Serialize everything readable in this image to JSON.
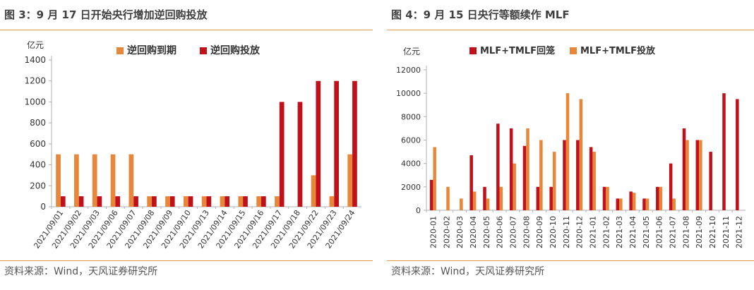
{
  "colors": {
    "dark_red": "#c0111a",
    "orange": "#e8873a",
    "rule": "#e09a47"
  },
  "left": {
    "title": "图 3：9 月 17 日开始央行增加逆回购投放",
    "source": "资料来源：Wind，天风证券研究所",
    "chart_data": {
      "type": "bar",
      "ylabel": "亿元",
      "ylim": [
        0,
        1400
      ],
      "yticks": [
        0,
        200,
        400,
        600,
        800,
        1000,
        1200,
        1400
      ],
      "categories": [
        "2021/09/01",
        "2021/09/02",
        "2021/09/03",
        "2021/09/06",
        "2021/09/07",
        "2021/09/08",
        "2021/09/09",
        "2021/09/10",
        "2021/09/13",
        "2021/09/14",
        "2021/09/15",
        "2021/09/16",
        "2021/09/17",
        "2021/09/18",
        "2021/09/22",
        "2021/09/23",
        "2021/09/24"
      ],
      "series": [
        {
          "name": "逆回购到期",
          "color": "#e8873a",
          "values": [
            500,
            500,
            500,
            500,
            500,
            100,
            100,
            100,
            100,
            100,
            100,
            100,
            100,
            0,
            300,
            100,
            500
          ]
        },
        {
          "name": "逆回购投放",
          "color": "#c0111a",
          "values": [
            100,
            100,
            100,
            100,
            100,
            100,
            100,
            100,
            100,
            100,
            100,
            100,
            1000,
            1000,
            1200,
            1200,
            1200
          ]
        }
      ],
      "legend": "top-center"
    }
  },
  "right": {
    "title": "图 4：9 月 15 日央行等额续作 MLF",
    "source": "资料来源：Wind，天风证券研究所",
    "chart_data": {
      "type": "bar",
      "ylabel": "亿元",
      "ylim": [
        0,
        12000
      ],
      "yticks": [
        0,
        2000,
        4000,
        6000,
        8000,
        10000,
        12000
      ],
      "categories": [
        "2020-01",
        "2020-02",
        "2020-03",
        "2020-04",
        "2020-05",
        "2020-06",
        "2020-07",
        "2020-08",
        "2020-09",
        "2020-10",
        "2020-11",
        "2020-12",
        "2021-01",
        "2021-02",
        "2021-03",
        "2021-04",
        "2021-05",
        "2021-06",
        "2021-07",
        "2021-08",
        "2021-09",
        "2021-10",
        "2021-11",
        "2021-12"
      ],
      "series": [
        {
          "name": "MLF+TMLF回笼",
          "color": "#c0111a",
          "values": [
            2600,
            0,
            0,
            4700,
            2000,
            7400,
            7000,
            5500,
            2000,
            2000,
            6000,
            6000,
            5400,
            2000,
            1000,
            1600,
            1000,
            2000,
            4000,
            7000,
            6000,
            5000,
            10000,
            9500
          ]
        },
        {
          "name": "MLF+TMLF投放",
          "color": "#e8873a",
          "values": [
            5400,
            2000,
            1000,
            1600,
            1000,
            2000,
            4000,
            7000,
            6000,
            5000,
            10000,
            9500,
            5000,
            2000,
            1000,
            1500,
            1000,
            2000,
            1000,
            6000,
            6000,
            0,
            0,
            0
          ]
        }
      ],
      "legend": "top-center"
    }
  }
}
